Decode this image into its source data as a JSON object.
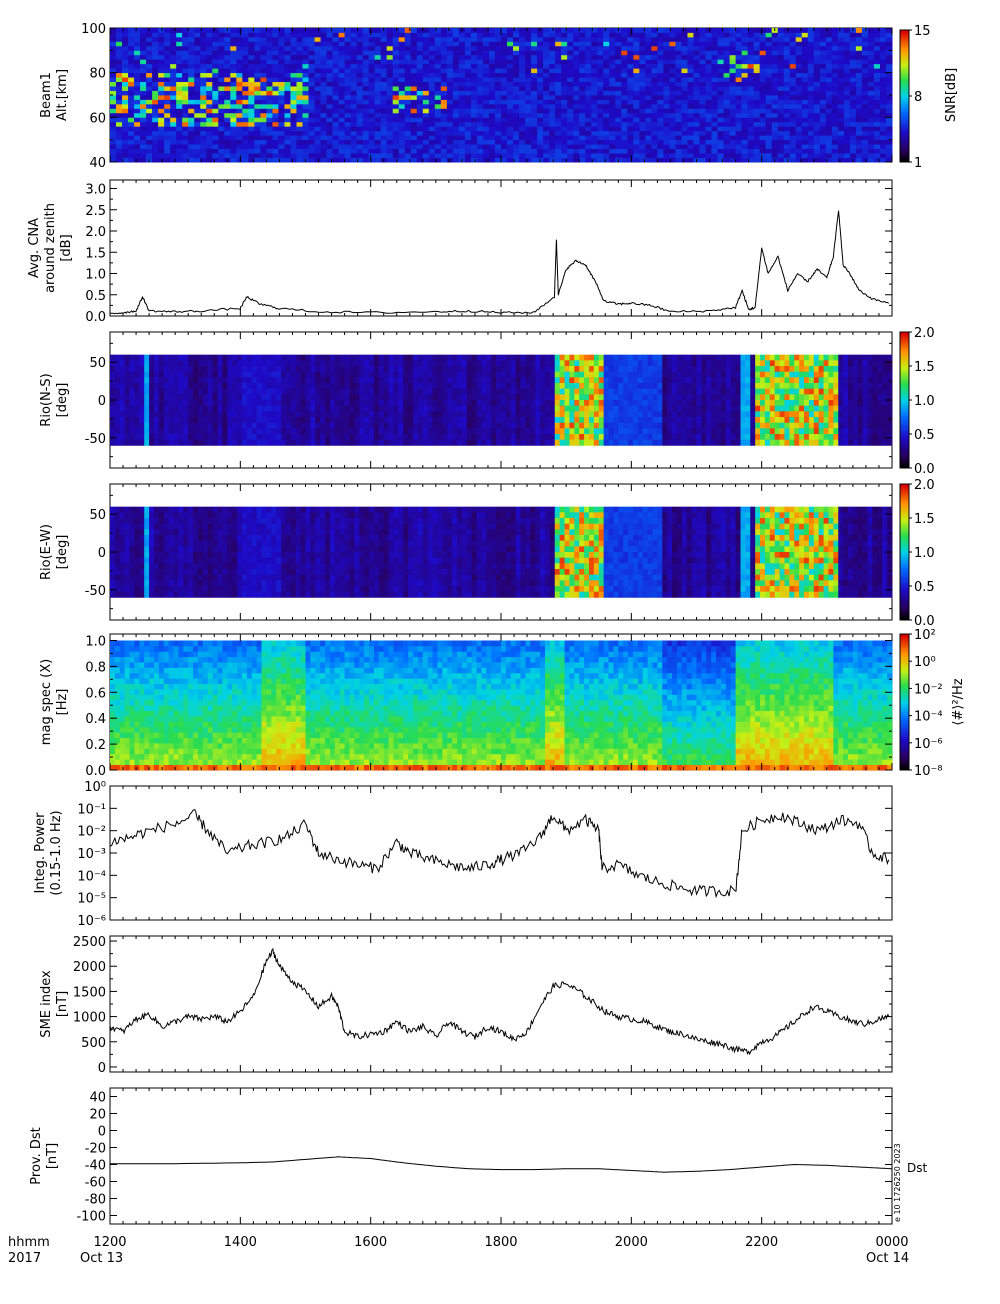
{
  "figure": {
    "time_label": "hhmm",
    "year_label": "2017",
    "date_start": "Oct 13",
    "date_end": "Oct 14",
    "x_ticks": [
      "1200",
      "1400",
      "1600",
      "1800",
      "2000",
      "2200",
      "0000"
    ],
    "credit": "e 10 1726250 2023",
    "dst_tag": "Dst"
  },
  "chart_data": [
    {
      "type": "heatmap",
      "ylabel_line1": "Beam1",
      "ylabel_line2": "Alt.[km]",
      "y_ticks": [
        "40",
        "60",
        "80",
        "100"
      ],
      "ylim": [
        40,
        100
      ],
      "colorbar_title": "SNR[dB]",
      "colorbar_ticks": [
        "1",
        "8",
        "15"
      ],
      "features": [
        {
          "x": [
            1200,
            1500
          ],
          "alt": [
            57,
            80
          ],
          "level": "high"
        },
        {
          "x": [
            1630,
            1720
          ],
          "alt": [
            62,
            74
          ],
          "level": "high"
        },
        {
          "x": [
            2140,
            2200
          ],
          "alt": [
            77,
            85
          ],
          "level": "medium"
        }
      ]
    },
    {
      "type": "line",
      "ylabel_line1": "Avg. CNA",
      "ylabel_line2": "around zenith",
      "ylabel_line3": "[dB]",
      "y_ticks": [
        "0.0",
        "0.5",
        "1.0",
        "1.5",
        "2.0",
        "2.5",
        "3.0"
      ],
      "ylim": [
        0,
        3.2
      ],
      "series": [
        {
          "x": [
            1200,
            1220,
            1240,
            1250,
            1260,
            1300,
            1340,
            1400,
            1410,
            1430,
            1460,
            1520,
            1600,
            1700,
            1750,
            1800,
            1850,
            1882,
            1885,
            1888,
            1900,
            1915,
            1930,
            1945,
            1958,
            1980,
            2000,
            2030,
            2060,
            2120,
            2160,
            2170,
            2180,
            2190,
            2200,
            2210,
            2225,
            2240,
            2255,
            2270,
            2285,
            2300,
            2310,
            2318,
            2325,
            2335,
            2350,
            2370,
            2395
          ],
          "values": [
            0.05,
            0.08,
            0.12,
            0.45,
            0.12,
            0.1,
            0.12,
            0.18,
            0.45,
            0.28,
            0.18,
            0.1,
            0.08,
            0.1,
            0.12,
            0.08,
            0.08,
            0.45,
            1.8,
            0.5,
            1.1,
            1.3,
            1.2,
            0.8,
            0.35,
            0.28,
            0.3,
            0.25,
            0.1,
            0.12,
            0.2,
            0.6,
            0.15,
            0.2,
            1.6,
            1.0,
            1.4,
            0.6,
            1.0,
            0.8,
            1.1,
            0.9,
            1.4,
            2.5,
            1.2,
            1.0,
            0.6,
            0.4,
            0.3
          ]
        }
      ]
    },
    {
      "type": "heatmap",
      "ylabel_line1": "Rio(N-S)",
      "ylabel_line2": "[deg]",
      "y_ticks": [
        "-50",
        "0",
        "50"
      ],
      "ylim": [
        -90,
        90
      ],
      "colorbar_ticks": [
        "0.0",
        "0.5",
        "1.0",
        "1.5",
        "2.0"
      ],
      "data_range": [
        -60,
        60
      ],
      "high_intervals": [
        [
          1880,
          1960
        ],
        [
          2190,
          2320
        ]
      ]
    },
    {
      "type": "heatmap",
      "ylabel_line1": "Rio(E-W)",
      "ylabel_line2": "[deg]",
      "y_ticks": [
        "-50",
        "0",
        "50"
      ],
      "ylim": [
        -90,
        90
      ],
      "colorbar_ticks": [
        "0.0",
        "0.5",
        "1.0",
        "1.5",
        "2.0"
      ],
      "data_range": [
        -60,
        60
      ],
      "high_intervals": [
        [
          1880,
          1960
        ],
        [
          2190,
          2320
        ]
      ]
    },
    {
      "type": "heatmap",
      "ylabel_line1": "mag spec (X)",
      "ylabel_line2": "[Hz]",
      "y_ticks": [
        "0.0",
        "0.2",
        "0.4",
        "0.6",
        "0.8",
        "1.0"
      ],
      "ylim": [
        0,
        1.05
      ],
      "colorbar_ticks": [
        "10⁻⁸",
        "10⁻⁶",
        "10⁻⁴",
        "10⁻²",
        "10⁰",
        "10²"
      ],
      "colorbar_title": "⟨#⟩²/Hz",
      "bright_intervals": [
        [
          1430,
          1500
        ],
        [
          1870,
          1900
        ],
        [
          2160,
          2310
        ]
      ]
    },
    {
      "type": "line",
      "ylabel_line1": "Integ. Power",
      "ylabel_line2": "(0.15-1.0 Hz)",
      "y_ticks": [
        "10⁻⁶",
        "10⁻⁵",
        "10⁻⁴",
        "10⁻³",
        "10⁻²",
        "10⁻¹",
        "10⁰"
      ],
      "y_scale": "log",
      "ylim": [
        1e-06,
        1
      ],
      "series": [
        {
          "x": [
            1200,
            1230,
            1260,
            1300,
            1330,
            1350,
            1380,
            1410,
            1440,
            1470,
            1500,
            1520,
            1550,
            1580,
            1610,
            1640,
            1660,
            1690,
            1720,
            1750,
            1780,
            1800,
            1830,
            1860,
            1880,
            1900,
            1930,
            1950,
            1955,
            1980,
            2010,
            2040,
            2070,
            2100,
            2130,
            2160,
            2170,
            2200,
            2230,
            2260,
            2290,
            2320,
            2350,
            2370,
            2395
          ],
          "values": [
            0.003,
            0.005,
            0.01,
            0.02,
            0.05,
            0.01,
            0.001,
            0.002,
            0.003,
            0.005,
            0.02,
            0.001,
            0.0005,
            0.0003,
            0.0002,
            0.003,
            0.001,
            0.0005,
            0.0003,
            0.0002,
            0.0003,
            0.0005,
            0.001,
            0.005,
            0.05,
            0.01,
            0.03,
            0.01,
            0.0002,
            0.0003,
            0.0001,
            5e-05,
            3e-05,
            2e-05,
            2e-05,
            2e-05,
            0.01,
            0.03,
            0.05,
            0.02,
            0.01,
            0.03,
            0.02,
            0.001,
            0.0005
          ]
        }
      ]
    },
    {
      "type": "line",
      "ylabel_line1": "SME index",
      "ylabel_line2": "[nT]",
      "y_ticks": [
        "0",
        "500",
        "1000",
        "1500",
        "2000",
        "2500"
      ],
      "ylim": [
        -100,
        2600
      ],
      "series": [
        {
          "x": [
            1200,
            1220,
            1240,
            1260,
            1280,
            1300,
            1320,
            1340,
            1360,
            1380,
            1400,
            1420,
            1440,
            1450,
            1460,
            1480,
            1500,
            1520,
            1540,
            1550,
            1560,
            1580,
            1600,
            1620,
            1640,
            1660,
            1680,
            1700,
            1720,
            1740,
            1760,
            1780,
            1800,
            1820,
            1840,
            1860,
            1880,
            1900,
            1920,
            1940,
            1960,
            1980,
            2000,
            2020,
            2040,
            2060,
            2080,
            2100,
            2120,
            2140,
            2160,
            2180,
            2200,
            2220,
            2240,
            2260,
            2280,
            2300,
            2320,
            2340,
            2360,
            2380,
            2395
          ],
          "values": [
            800,
            700,
            950,
            1050,
            800,
            900,
            1000,
            950,
            1000,
            900,
            1100,
            1400,
            2100,
            2300,
            2000,
            1700,
            1500,
            1200,
            1400,
            1200,
            700,
            600,
            650,
            700,
            900,
            700,
            800,
            600,
            900,
            700,
            600,
            800,
            700,
            550,
            700,
            1200,
            1600,
            1650,
            1500,
            1300,
            1100,
            1000,
            950,
            900,
            800,
            700,
            650,
            550,
            500,
            450,
            350,
            300,
            500,
            600,
            800,
            1000,
            1200,
            1100,
            1000,
            900,
            850,
            950,
            1000
          ]
        }
      ]
    },
    {
      "type": "line",
      "ylabel_line1": "Prov. Dst",
      "ylabel_line2": "[nT]",
      "y_ticks": [
        "-100",
        "-80",
        "-60",
        "-40",
        "-20",
        "0",
        "20",
        "40"
      ],
      "ylim": [
        -110,
        50
      ],
      "series": [
        {
          "x": [
            1200,
            1300,
            1400,
            1450,
            1500,
            1550,
            1600,
            1650,
            1700,
            1750,
            1800,
            1850,
            1900,
            1950,
            2000,
            2050,
            2100,
            2150,
            2200,
            2250,
            2300,
            2350,
            2400
          ],
          "values": [
            -39,
            -39,
            -38,
            -37,
            -34,
            -31,
            -33,
            -38,
            -42,
            -45,
            -46,
            -46,
            -45,
            -45,
            -47,
            -49,
            -48,
            -46,
            -43,
            -40,
            -41,
            -43,
            -45
          ]
        }
      ]
    }
  ]
}
